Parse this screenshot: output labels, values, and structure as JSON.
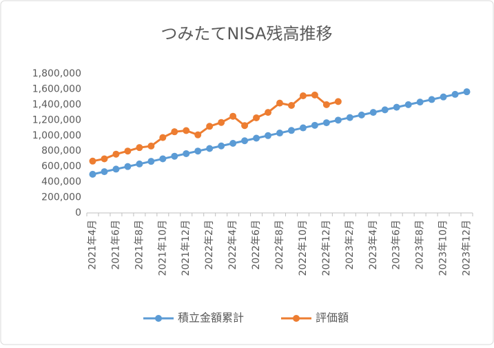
{
  "chart_data": {
    "type": "line",
    "title": "つみたてNISA残高推移",
    "categories": [
      "2021年4月",
      null,
      "2021年6月",
      null,
      "2021年8月",
      null,
      "2021年10月",
      null,
      "2021年12月",
      null,
      "2022年2月",
      null,
      "2022年4月",
      null,
      "2022年6月",
      null,
      "2022年8月",
      null,
      "2022年10月",
      null,
      "2022年12月",
      null,
      "2023年2月",
      null,
      "2023年4月",
      null,
      "2023年6月",
      null,
      "2023年8月",
      null,
      "2023年10月",
      null,
      "2023年12月"
    ],
    "series": [
      {
        "name": "積立金額累計",
        "color": "#5b9bd5",
        "values": [
          500000,
          533333,
          566667,
          600000,
          633333,
          666667,
          700000,
          733333,
          766667,
          800000,
          833333,
          866667,
          900000,
          933333,
          966667,
          1000000,
          1033333,
          1066667,
          1100000,
          1133333,
          1166667,
          1200000,
          1233333,
          1266667,
          1300000,
          1333333,
          1366667,
          1400000,
          1433333,
          1466667,
          1500000,
          1533333,
          1566667
        ]
      },
      {
        "name": "評価額",
        "color": "#ed7d31",
        "values": [
          670000,
          700000,
          760000,
          800000,
          845000,
          865000,
          975000,
          1050000,
          1065000,
          1010000,
          1120000,
          1170000,
          1250000,
          1130000,
          1230000,
          1300000,
          1420000,
          1390000,
          1515000,
          1525000,
          1400000,
          1440000,
          null,
          null,
          null,
          null,
          null,
          null,
          null,
          null,
          null,
          null,
          null
        ]
      }
    ],
    "ylim": [
      0,
      1800000
    ],
    "yticks": [
      0,
      {
        "value": 200000,
        "label": "200,000"
      },
      {
        "value": 400000,
        "label": "400,000"
      },
      {
        "value": 600000,
        "label": "600,000"
      },
      {
        "value": 800000,
        "label": "800,000"
      },
      {
        "value": 1000000,
        "label": "1,000,000"
      },
      {
        "value": 1200000,
        "label": "1,200,000"
      },
      {
        "value": 1400000,
        "label": "1,400,000"
      },
      {
        "value": 1600000,
        "label": "1,600,000"
      },
      {
        "value": 1800000,
        "label": "1,800,000"
      }
    ],
    "grid": false,
    "legend": "bottom"
  }
}
